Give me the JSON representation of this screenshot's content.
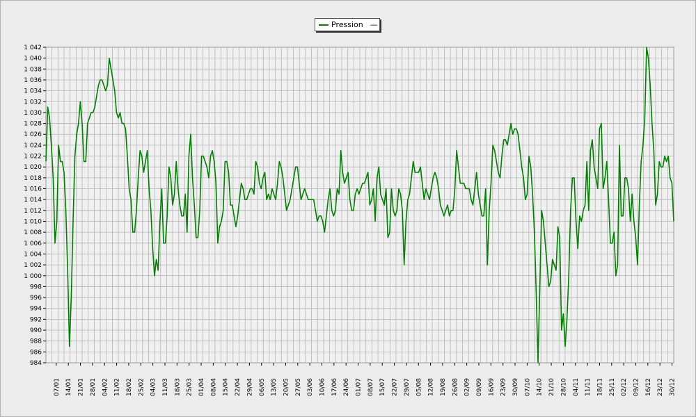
{
  "chart_data": {
    "type": "line",
    "title": "",
    "xlabel": "",
    "ylabel": "",
    "ylim": [
      984,
      1042
    ],
    "ytick_step": 2,
    "grid": true,
    "legend_position": "top-center",
    "colors": {
      "series": "#008000",
      "grid": "#b4b4b4",
      "plot_bg": "#f0f0f0"
    },
    "x_ticks": [
      "07/01",
      "14/01",
      "21/01",
      "28/01",
      "04/02",
      "11/02",
      "18/02",
      "25/02",
      "04/03",
      "11/03",
      "18/03",
      "25/03",
      "01/04",
      "08/04",
      "15/04",
      "22/04",
      "29/04",
      "06/05",
      "13/05",
      "20/05",
      "27/05",
      "03/06",
      "10/06",
      "17/06",
      "24/06",
      "01/07",
      "08/07",
      "15/07",
      "22/07",
      "29/07",
      "05/08",
      "12/08",
      "19/08",
      "26/08",
      "02/09",
      "09/09",
      "16/09",
      "23/09",
      "30/09",
      "07/10",
      "14/10",
      "21/10",
      "28/10",
      "04/11",
      "11/11",
      "18/11",
      "25/11",
      "02/12",
      "09/12",
      "16/12",
      "23/12",
      "30/12"
    ],
    "series": [
      {
        "name": "Pression",
        "legend_suffix": "—",
        "x_start_day": 1,
        "x_end_day": 365,
        "values": [
          1021,
          1031,
          1029,
          1024,
          1018,
          1006,
          1010,
          1024,
          1021,
          1021,
          1019,
          1012,
          1001,
          987,
          996,
          1010,
          1022,
          1026,
          1028,
          1032,
          1028,
          1021,
          1021,
          1028,
          1029,
          1030,
          1030,
          1031,
          1033,
          1035,
          1036,
          1036,
          1035,
          1034,
          1035,
          1040,
          1038,
          1036,
          1034,
          1030,
          1029,
          1030,
          1028,
          1028,
          1027,
          1022,
          1016,
          1014,
          1008,
          1008,
          1012,
          1018,
          1023,
          1022,
          1019,
          1021,
          1023,
          1016,
          1012,
          1005,
          1000,
          1003,
          1001,
          1010,
          1016,
          1006,
          1006,
          1011,
          1020,
          1018,
          1013,
          1015,
          1021,
          1016,
          1013,
          1011,
          1011,
          1015,
          1008,
          1022,
          1026,
          1018,
          1013,
          1007,
          1007,
          1012,
          1022,
          1022,
          1021,
          1020,
          1018,
          1022,
          1023,
          1021,
          1017,
          1006,
          1009,
          1010,
          1012,
          1021,
          1021,
          1019,
          1013,
          1013,
          1011,
          1009,
          1011,
          1014,
          1017,
          1016,
          1014,
          1014,
          1015,
          1016,
          1016,
          1015,
          1021,
          1020,
          1017,
          1016,
          1018,
          1019,
          1014,
          1015,
          1014,
          1016,
          1015,
          1014,
          1017,
          1021,
          1020,
          1018,
          1015,
          1012,
          1013,
          1014,
          1016,
          1018,
          1020,
          1020,
          1017,
          1014,
          1015,
          1016,
          1015,
          1014,
          1014,
          1014,
          1014,
          1012,
          1010,
          1011,
          1011,
          1010,
          1008,
          1011,
          1014,
          1016,
          1012,
          1011,
          1012,
          1016,
          1015,
          1023,
          1019,
          1017,
          1018,
          1019,
          1014,
          1012,
          1012,
          1015,
          1016,
          1015,
          1016,
          1017,
          1017,
          1018,
          1019,
          1013,
          1014,
          1016,
          1010,
          1018,
          1020,
          1015,
          1014,
          1013,
          1016,
          1007,
          1008,
          1016,
          1012,
          1011,
          1012,
          1016,
          1015,
          1012,
          1002,
          1010,
          1014,
          1015,
          1018,
          1021,
          1019,
          1019,
          1019,
          1020,
          1017,
          1014,
          1016,
          1015,
          1014,
          1016,
          1018,
          1019,
          1018,
          1016,
          1013,
          1012,
          1011,
          1012,
          1013,
          1011,
          1012,
          1012,
          1016,
          1023,
          1020,
          1017,
          1017,
          1017,
          1016,
          1016,
          1016,
          1014,
          1013,
          1016,
          1019,
          1015,
          1013,
          1011,
          1011,
          1016,
          1002,
          1012,
          1017,
          1024,
          1023,
          1021,
          1019,
          1018,
          1022,
          1025,
          1025,
          1024,
          1026,
          1028,
          1026,
          1027,
          1027,
          1026,
          1023,
          1020,
          1018,
          1014,
          1015,
          1022,
          1020,
          1015,
          1008,
          997,
          984,
          998,
          1012,
          1010,
          1006,
          1002,
          998,
          999,
          1003,
          1002,
          1001,
          1009,
          1007,
          990,
          993,
          987,
          992,
          1000,
          1012,
          1018,
          1018,
          1010,
          1005,
          1011,
          1010,
          1012,
          1013,
          1021,
          1012,
          1023,
          1025,
          1020,
          1018,
          1016,
          1027,
          1028,
          1016,
          1018,
          1021,
          1014,
          1006,
          1006,
          1008,
          1000,
          1002,
          1024,
          1011,
          1011,
          1018,
          1018,
          1016,
          1010,
          1015,
          1010,
          1007,
          1002,
          1013,
          1021,
          1024,
          1029,
          1042,
          1040,
          1035,
          1028,
          1023,
          1013,
          1015,
          1021,
          1020,
          1020,
          1022,
          1021,
          1022,
          1018,
          1017,
          1010
        ]
      }
    ]
  }
}
